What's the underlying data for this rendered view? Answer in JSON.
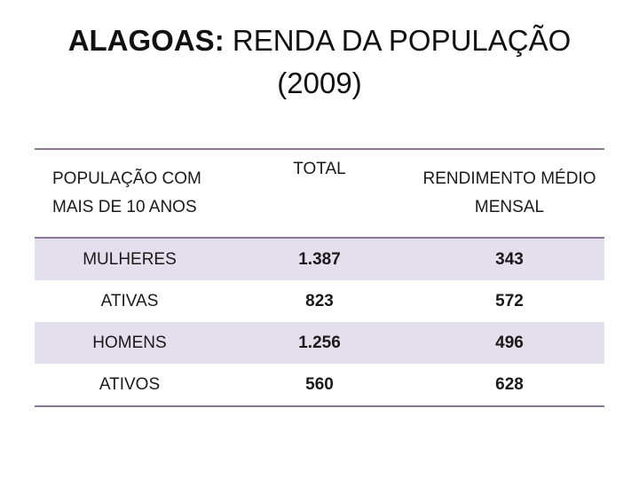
{
  "title": {
    "bold": "ALAGOAS:",
    "rest": " RENDA DA POPULAÇÃO",
    "line2": "(2009)"
  },
  "table": {
    "headers": [
      "POPULAÇÃO COM MAIS DE 10 ANOS",
      "TOTAL",
      "RENDIMENTO MÉDIO MENSAL"
    ],
    "rows": [
      [
        "MULHERES",
        "1.387",
        "343"
      ],
      [
        "ATIVAS",
        "823",
        "572"
      ],
      [
        "HOMENS",
        "1.256",
        "496"
      ],
      [
        "ATIVOS",
        "560",
        "628"
      ]
    ],
    "shade_color": "#e4dfec",
    "rule_color": "#8c7896"
  }
}
